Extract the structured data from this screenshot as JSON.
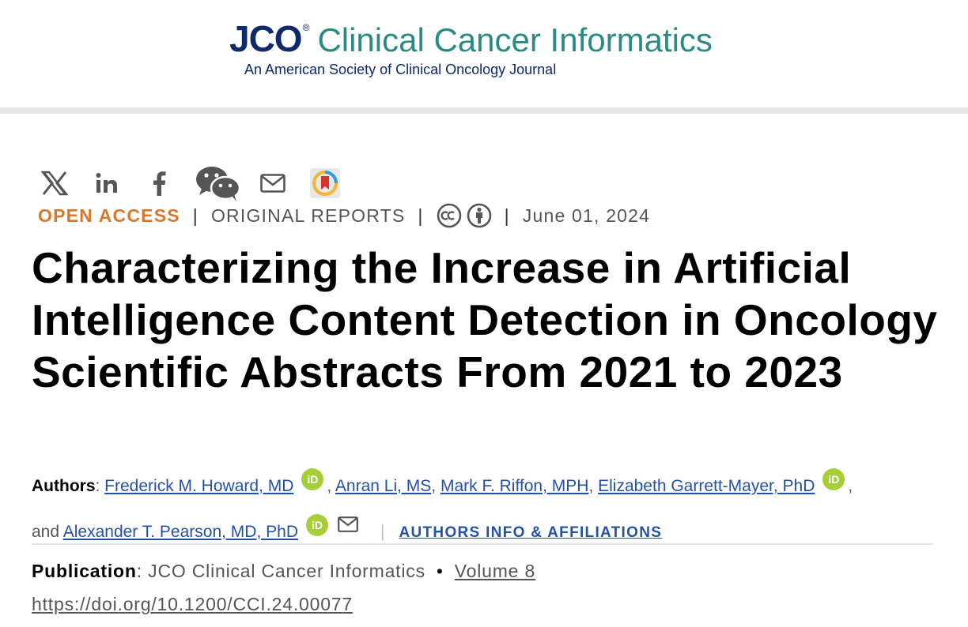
{
  "header": {
    "logo_jco": "JCO",
    "logo_reg": "®",
    "logo_name": "Clinical Cancer Informatics",
    "logo_subtitle": "An American Society of Clinical Oncology Journal"
  },
  "share": {
    "icons": [
      "x-icon",
      "linkedin-icon",
      "facebook-icon",
      "wechat-icon",
      "email-icon",
      "mendeley-icon"
    ]
  },
  "meta": {
    "access": "OPEN ACCESS",
    "article_type": "ORIGINAL REPORTS",
    "license_icons": [
      "creative-commons-icon",
      "attribution-icon"
    ],
    "date": "June 01, 2024"
  },
  "article": {
    "title": "Characterizing the Increase in Artificial Intelligence Content Detection in Oncology Scientific Abstracts From 2021 to 2023"
  },
  "authors": {
    "label": "Authors",
    "colon": ": ",
    "list": [
      {
        "name": "Frederick M. Howard, MD",
        "orcid": true
      },
      {
        "name": "Anran Li, MS",
        "orcid": false
      },
      {
        "name": "Mark F. Riffon, MPH",
        "orcid": false
      },
      {
        "name": "Elizabeth Garrett-Mayer, PhD",
        "orcid": true
      },
      {
        "name": "Alexander T. Pearson, MD, PhD",
        "orcid": true
      }
    ],
    "and_text": "and",
    "orcid_label": "iD",
    "affiliations_link": "AUTHORS INFO & AFFILIATIONS"
  },
  "publication": {
    "label": "Publication",
    "journal": "JCO Clinical Cancer Informatics",
    "bullet": "•",
    "volume": "Volume 8",
    "doi": "https://doi.org/10.1200/CCI.24.00077"
  },
  "colors": {
    "brand_navy": "#0e2a6b",
    "brand_teal": "#2a8a86",
    "open_access": "#d9782d",
    "link": "#2451a6",
    "orcid": "#a6ce39"
  }
}
